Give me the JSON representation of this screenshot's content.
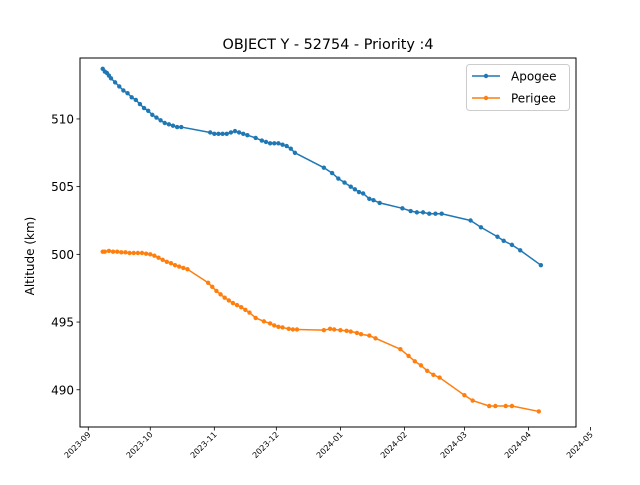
{
  "chart_data": {
    "type": "line",
    "title": "OBJECT Y - 52754 - Priority :4",
    "xlabel": "",
    "ylabel": "Altitude (km)",
    "x_type": "date",
    "xlim": [
      "2023-08-28",
      "2024-04-24"
    ],
    "ylim": [
      487.25,
      514.5
    ],
    "grid": false,
    "legend_position": "top-right",
    "x_ticks": [
      {
        "label": "2023-09",
        "date": "2023-09-01"
      },
      {
        "label": "2023-10",
        "date": "2023-10-01"
      },
      {
        "label": "2023-11",
        "date": "2023-11-01"
      },
      {
        "label": "2023-12",
        "date": "2023-12-01"
      },
      {
        "label": "2024-01",
        "date": "2024-01-01"
      },
      {
        "label": "2024-02",
        "date": "2024-02-01"
      },
      {
        "label": "2024-03",
        "date": "2024-03-01"
      },
      {
        "label": "2024-04",
        "date": "2024-04-01"
      },
      {
        "label": "2024-05",
        "date": "2024-05-01"
      }
    ],
    "y_ticks": [
      490,
      495,
      500,
      505,
      510
    ],
    "series": [
      {
        "name": "Apogee",
        "color": "#1f77b4",
        "points": [
          [
            "2023-09-08",
            513.7
          ],
          [
            "2023-09-09",
            513.5
          ],
          [
            "2023-09-10",
            513.4
          ],
          [
            "2023-09-11",
            513.2
          ],
          [
            "2023-09-12",
            513.0
          ],
          [
            "2023-09-14",
            512.7
          ],
          [
            "2023-09-16",
            512.4
          ],
          [
            "2023-09-18",
            512.1
          ],
          [
            "2023-09-20",
            511.9
          ],
          [
            "2023-09-22",
            511.6
          ],
          [
            "2023-09-24",
            511.4
          ],
          [
            "2023-09-26",
            511.1
          ],
          [
            "2023-09-28",
            510.8
          ],
          [
            "2023-09-30",
            510.6
          ],
          [
            "2023-10-02",
            510.3
          ],
          [
            "2023-10-04",
            510.1
          ],
          [
            "2023-10-06",
            509.9
          ],
          [
            "2023-10-08",
            509.7
          ],
          [
            "2023-10-10",
            509.6
          ],
          [
            "2023-10-12",
            509.5
          ],
          [
            "2023-10-14",
            509.4
          ],
          [
            "2023-10-16",
            509.4
          ],
          [
            "2023-10-30",
            509.0
          ],
          [
            "2023-11-01",
            508.9
          ],
          [
            "2023-11-03",
            508.9
          ],
          [
            "2023-11-05",
            508.9
          ],
          [
            "2023-11-07",
            508.9
          ],
          [
            "2023-11-09",
            509.0
          ],
          [
            "2023-11-11",
            509.1
          ],
          [
            "2023-11-13",
            509.0
          ],
          [
            "2023-11-15",
            508.9
          ],
          [
            "2023-11-17",
            508.8
          ],
          [
            "2023-11-21",
            508.6
          ],
          [
            "2023-11-24",
            508.4
          ],
          [
            "2023-11-26",
            508.3
          ],
          [
            "2023-11-28",
            508.2
          ],
          [
            "2023-11-30",
            508.2
          ],
          [
            "2023-12-02",
            508.2
          ],
          [
            "2023-12-04",
            508.1
          ],
          [
            "2023-12-06",
            508.0
          ],
          [
            "2023-12-08",
            507.8
          ],
          [
            "2023-12-10",
            507.5
          ],
          [
            "2023-12-24",
            506.4
          ],
          [
            "2023-12-28",
            506.0
          ],
          [
            "2023-12-31",
            505.6
          ],
          [
            "2024-01-03",
            505.3
          ],
          [
            "2024-01-06",
            505.0
          ],
          [
            "2024-01-08",
            504.8
          ],
          [
            "2024-01-10",
            504.6
          ],
          [
            "2024-01-12",
            504.5
          ],
          [
            "2024-01-15",
            504.1
          ],
          [
            "2024-01-17",
            504.0
          ],
          [
            "2024-01-20",
            503.8
          ],
          [
            "2024-01-31",
            503.4
          ],
          [
            "2024-02-04",
            503.2
          ],
          [
            "2024-02-07",
            503.1
          ],
          [
            "2024-02-10",
            503.1
          ],
          [
            "2024-02-13",
            503.0
          ],
          [
            "2024-02-16",
            503.0
          ],
          [
            "2024-02-19",
            503.0
          ],
          [
            "2024-03-04",
            502.5
          ],
          [
            "2024-03-09",
            502.0
          ],
          [
            "2024-03-17",
            501.3
          ],
          [
            "2024-03-20",
            501.0
          ],
          [
            "2024-03-24",
            500.7
          ],
          [
            "2024-03-28",
            500.3
          ],
          [
            "2024-04-07",
            499.2
          ]
        ]
      },
      {
        "name": "Perigee",
        "color": "#ff7f0e",
        "points": [
          [
            "2023-09-08",
            500.2
          ],
          [
            "2023-09-09",
            500.2
          ],
          [
            "2023-09-11",
            500.25
          ],
          [
            "2023-09-13",
            500.2
          ],
          [
            "2023-09-15",
            500.2
          ],
          [
            "2023-09-17",
            500.15
          ],
          [
            "2023-09-19",
            500.15
          ],
          [
            "2023-09-21",
            500.1
          ],
          [
            "2023-09-23",
            500.1
          ],
          [
            "2023-09-25",
            500.1
          ],
          [
            "2023-09-27",
            500.1
          ],
          [
            "2023-09-29",
            500.05
          ],
          [
            "2023-10-01",
            500.0
          ],
          [
            "2023-10-03",
            499.9
          ],
          [
            "2023-10-05",
            499.75
          ],
          [
            "2023-10-07",
            499.6
          ],
          [
            "2023-10-09",
            499.45
          ],
          [
            "2023-10-11",
            499.35
          ],
          [
            "2023-10-13",
            499.2
          ],
          [
            "2023-10-15",
            499.1
          ],
          [
            "2023-10-17",
            499.0
          ],
          [
            "2023-10-19",
            498.9
          ],
          [
            "2023-10-29",
            497.9
          ],
          [
            "2023-10-31",
            497.6
          ],
          [
            "2023-11-02",
            497.3
          ],
          [
            "2023-11-04",
            497.05
          ],
          [
            "2023-11-06",
            496.8
          ],
          [
            "2023-11-08",
            496.6
          ],
          [
            "2023-11-10",
            496.4
          ],
          [
            "2023-11-12",
            496.25
          ],
          [
            "2023-11-14",
            496.1
          ],
          [
            "2023-11-16",
            495.9
          ],
          [
            "2023-11-18",
            495.7
          ],
          [
            "2023-11-21",
            495.3
          ],
          [
            "2023-11-25",
            495.05
          ],
          [
            "2023-11-28",
            494.9
          ],
          [
            "2023-11-30",
            494.75
          ],
          [
            "2023-12-02",
            494.65
          ],
          [
            "2023-12-04",
            494.6
          ],
          [
            "2023-12-07",
            494.5
          ],
          [
            "2023-12-09",
            494.45
          ],
          [
            "2023-12-11",
            494.45
          ],
          [
            "2023-12-24",
            494.4
          ],
          [
            "2023-12-27",
            494.5
          ],
          [
            "2023-12-29",
            494.45
          ],
          [
            "2024-01-01",
            494.4
          ],
          [
            "2024-01-04",
            494.35
          ],
          [
            "2024-01-06",
            494.3
          ],
          [
            "2024-01-09",
            494.2
          ],
          [
            "2024-01-11",
            494.1
          ],
          [
            "2024-01-15",
            494.0
          ],
          [
            "2024-01-18",
            493.8
          ],
          [
            "2024-01-30",
            493.0
          ],
          [
            "2024-02-03",
            492.5
          ],
          [
            "2024-02-06",
            492.1
          ],
          [
            "2024-02-09",
            491.8
          ],
          [
            "2024-02-12",
            491.4
          ],
          [
            "2024-02-15",
            491.1
          ],
          [
            "2024-02-18",
            490.9
          ],
          [
            "2024-03-01",
            489.6
          ],
          [
            "2024-03-05",
            489.2
          ],
          [
            "2024-03-13",
            488.8
          ],
          [
            "2024-03-16",
            488.8
          ],
          [
            "2024-03-21",
            488.8
          ],
          [
            "2024-03-24",
            488.8
          ],
          [
            "2024-04-06",
            488.4
          ]
        ]
      }
    ]
  }
}
